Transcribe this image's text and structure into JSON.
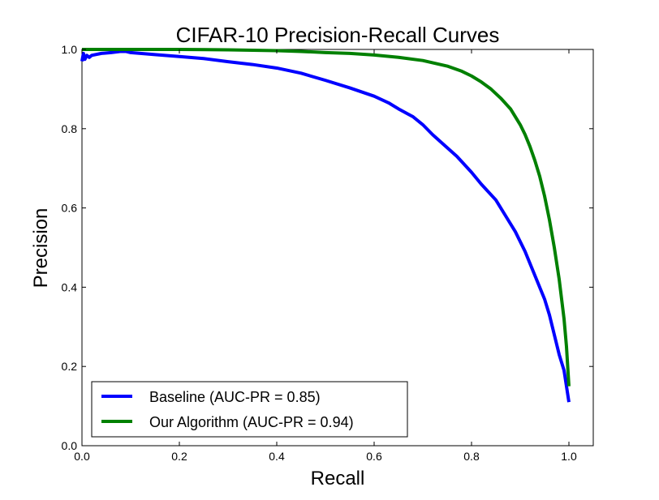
{
  "chart_data": {
    "type": "line",
    "title": "CIFAR-10 Precision-Recall Curves",
    "xlabel": "Recall",
    "ylabel": "Precision",
    "xlim": [
      0.0,
      1.05
    ],
    "ylim": [
      0.0,
      1.0
    ],
    "xticks": [
      0.0,
      0.2,
      0.4,
      0.6,
      0.8,
      1.0
    ],
    "xtick_labels": [
      "0.0",
      "0.2",
      "0.4",
      "0.6",
      "0.8",
      "1.0"
    ],
    "yticks": [
      0.0,
      0.2,
      0.4,
      0.6,
      0.8,
      1.0
    ],
    "ytick_labels": [
      "0.0",
      "0.2",
      "0.4",
      "0.6",
      "0.8",
      "1.0"
    ],
    "grid": false,
    "legend_position": "lower-left",
    "series": [
      {
        "name": "Baseline (AUC-PR = 0.85)",
        "color": "#0000ff",
        "points": [
          [
            0.0,
            0.97
          ],
          [
            0.003,
            0.99
          ],
          [
            0.006,
            0.975
          ],
          [
            0.01,
            0.985
          ],
          [
            0.015,
            0.98
          ],
          [
            0.02,
            0.985
          ],
          [
            0.04,
            0.99
          ],
          [
            0.06,
            0.992
          ],
          [
            0.08,
            0.995
          ],
          [
            0.09,
            0.995
          ],
          [
            0.1,
            0.992
          ],
          [
            0.15,
            0.987
          ],
          [
            0.2,
            0.982
          ],
          [
            0.25,
            0.977
          ],
          [
            0.3,
            0.969
          ],
          [
            0.35,
            0.962
          ],
          [
            0.4,
            0.953
          ],
          [
            0.45,
            0.94
          ],
          [
            0.5,
            0.922
          ],
          [
            0.55,
            0.903
          ],
          [
            0.6,
            0.882
          ],
          [
            0.63,
            0.865
          ],
          [
            0.65,
            0.85
          ],
          [
            0.68,
            0.83
          ],
          [
            0.7,
            0.81
          ],
          [
            0.72,
            0.785
          ],
          [
            0.75,
            0.752
          ],
          [
            0.77,
            0.73
          ],
          [
            0.8,
            0.69
          ],
          [
            0.82,
            0.66
          ],
          [
            0.85,
            0.62
          ],
          [
            0.87,
            0.58
          ],
          [
            0.89,
            0.54
          ],
          [
            0.91,
            0.49
          ],
          [
            0.93,
            0.43
          ],
          [
            0.95,
            0.37
          ],
          [
            0.96,
            0.33
          ],
          [
            0.97,
            0.28
          ],
          [
            0.98,
            0.23
          ],
          [
            0.99,
            0.19
          ],
          [
            0.995,
            0.15
          ],
          [
            1.0,
            0.11
          ]
        ]
      },
      {
        "name": "Our Algorithm (AUC-PR = 0.94)",
        "color": "#008000",
        "points": [
          [
            0.0,
            1.0
          ],
          [
            0.1,
            1.0
          ],
          [
            0.2,
            1.0
          ],
          [
            0.3,
            0.999
          ],
          [
            0.4,
            0.997
          ],
          [
            0.45,
            0.995
          ],
          [
            0.5,
            0.992
          ],
          [
            0.55,
            0.99
          ],
          [
            0.6,
            0.986
          ],
          [
            0.65,
            0.98
          ],
          [
            0.7,
            0.972
          ],
          [
            0.75,
            0.958
          ],
          [
            0.78,
            0.945
          ],
          [
            0.8,
            0.933
          ],
          [
            0.82,
            0.918
          ],
          [
            0.84,
            0.9
          ],
          [
            0.86,
            0.877
          ],
          [
            0.88,
            0.85
          ],
          [
            0.9,
            0.81
          ],
          [
            0.91,
            0.785
          ],
          [
            0.92,
            0.755
          ],
          [
            0.93,
            0.72
          ],
          [
            0.94,
            0.68
          ],
          [
            0.95,
            0.63
          ],
          [
            0.96,
            0.57
          ],
          [
            0.97,
            0.5
          ],
          [
            0.98,
            0.42
          ],
          [
            0.985,
            0.37
          ],
          [
            0.99,
            0.32
          ],
          [
            0.995,
            0.25
          ],
          [
            1.0,
            0.15
          ]
        ]
      }
    ]
  }
}
